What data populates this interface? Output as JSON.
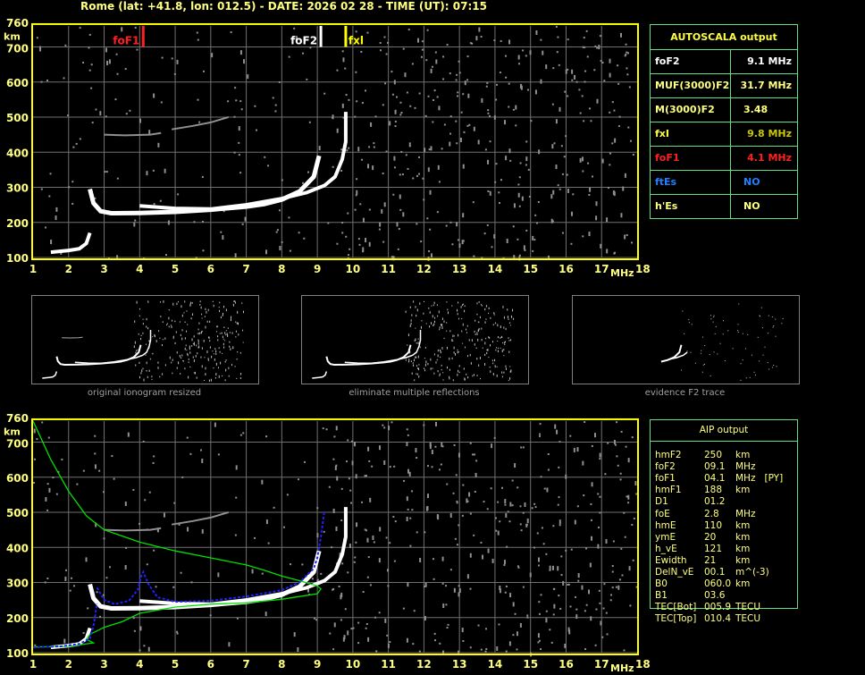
{
  "header": {
    "title": "Rome (lat: +41.8, lon: 012.5) - DATE: 2026 02 28 - TIME (UT): 07:15"
  },
  "axes": {
    "x_ticks": [
      "1",
      "2",
      "3",
      "4",
      "5",
      "6",
      "7",
      "8",
      "9",
      "10",
      "11",
      "12",
      "13",
      "14",
      "15",
      "16",
      "17",
      "18"
    ],
    "y_ticks": [
      "760",
      "700",
      "600",
      "500",
      "400",
      "300",
      "200",
      "100"
    ],
    "x_unit": "MHz",
    "y_unit": "km",
    "xlim": [
      1,
      18
    ],
    "ylim": [
      100,
      760
    ]
  },
  "colors": {
    "axis": "#ffff00",
    "grid": "#707070",
    "foF1": "#ff2020",
    "foF2": "#ffffff",
    "fxI": "#ffff00",
    "green_profile": "#00e000",
    "blue_trace": "#2020ff",
    "trace": "#ffffff",
    "noise": "#909090"
  },
  "markers": [
    {
      "label": "foF1",
      "freq": 4.1,
      "color": "#ff2020"
    },
    {
      "label": "foF2",
      "freq": 9.1,
      "color": "#ffffff"
    },
    {
      "label": "fxl",
      "freq": 9.8,
      "color": "#ffff00"
    }
  ],
  "traces": {
    "o_mode": [
      [
        2.6,
        295
      ],
      [
        2.7,
        255
      ],
      [
        2.9,
        232
      ],
      [
        3.2,
        226
      ],
      [
        4,
        227
      ],
      [
        5,
        230
      ],
      [
        6,
        236
      ],
      [
        7,
        245
      ],
      [
        7.5,
        252
      ],
      [
        8,
        265
      ],
      [
        8.5,
        288
      ],
      [
        8.9,
        330
      ],
      [
        9.05,
        390
      ]
    ],
    "x_mode": [
      [
        4.0,
        247
      ],
      [
        5,
        240
      ],
      [
        6,
        238
      ],
      [
        7,
        250
      ],
      [
        8,
        268
      ],
      [
        8.7,
        285
      ],
      [
        9.2,
        305
      ],
      [
        9.5,
        330
      ],
      [
        9.7,
        380
      ],
      [
        9.8,
        430
      ],
      [
        9.8,
        515
      ]
    ],
    "e_layer": [
      [
        1.5,
        115
      ],
      [
        2,
        120
      ],
      [
        2.3,
        125
      ],
      [
        2.5,
        140
      ],
      [
        2.6,
        170
      ]
    ],
    "multiple": [
      [
        3,
        450
      ],
      [
        3.6,
        448
      ],
      [
        4.3,
        450
      ],
      [
        4.6,
        455
      ]
    ],
    "multiple2": [
      [
        4.9,
        465
      ],
      [
        5.5,
        475
      ],
      [
        6,
        485
      ],
      [
        6.5,
        500
      ]
    ]
  },
  "aip_profile": {
    "green": [
      [
        1,
        760
      ],
      [
        1.5,
        650
      ],
      [
        2,
        560
      ],
      [
        2.5,
        490
      ],
      [
        3,
        450
      ],
      [
        4,
        415
      ],
      [
        5,
        390
      ],
      [
        6,
        370
      ],
      [
        7,
        350
      ],
      [
        7.5,
        335
      ],
      [
        8,
        318
      ],
      [
        8.5,
        305
      ],
      [
        9,
        290
      ],
      [
        9.1,
        282
      ],
      [
        9.0,
        268
      ],
      [
        8.5,
        260
      ],
      [
        8,
        252
      ],
      [
        7,
        242
      ],
      [
        6,
        238
      ],
      [
        5,
        230
      ],
      [
        4,
        212
      ],
      [
        3.5,
        188
      ],
      [
        3,
        172
      ],
      [
        2.6,
        152
      ],
      [
        2.5,
        138
      ],
      [
        2.7,
        128
      ],
      [
        2.3,
        122
      ],
      [
        2,
        118
      ],
      [
        1,
        116
      ]
    ],
    "blue": [
      [
        1,
        115
      ],
      [
        1.8,
        118
      ],
      [
        2.3,
        125
      ],
      [
        2.6,
        140
      ],
      [
        2.7,
        175
      ],
      [
        2.8,
        240
      ]
    ],
    "blue2": [
      [
        2.8,
        285
      ],
      [
        3,
        250
      ],
      [
        3.3,
        238
      ],
      [
        3.7,
        248
      ],
      [
        3.95,
        280
      ],
      [
        4.05,
        320
      ],
      [
        4.1,
        330
      ],
      [
        4.25,
        295
      ],
      [
        4.5,
        258
      ],
      [
        5,
        245
      ],
      [
        6,
        248
      ],
      [
        7,
        260
      ],
      [
        8,
        278
      ],
      [
        8.5,
        300
      ],
      [
        8.9,
        340
      ],
      [
        9,
        370
      ],
      [
        9.1,
        430
      ],
      [
        9.2,
        505
      ]
    ]
  },
  "thumbnails": [
    {
      "caption": "original ionogram resized"
    },
    {
      "caption": "eliminate multiple reflections"
    },
    {
      "caption": "evidence F2 trace"
    }
  ],
  "autoscala": {
    "title": "AUTOSCALA output",
    "rows": [
      {
        "key": "foF2",
        "value": "9.1 MHz",
        "color": "#ffffff",
        "value_color": "#ffffff"
      },
      {
        "key": "MUF(3000)F2",
        "value": "31.7 MHz",
        "color": "#ffff80",
        "value_color": "#ffff80"
      },
      {
        "key": "M(3000)F2",
        "value": "3.48",
        "color": "#ffff80",
        "value_color": "#ffff80"
      },
      {
        "key": "fxI",
        "value": "9.8 MHz",
        "color": "#ffff40",
        "value_color": "#c8c800"
      },
      {
        "key": "foF1",
        "value": "4.1 MHz",
        "color": "#ff2020",
        "value_color": "#ff2020"
      },
      {
        "key": "ftEs",
        "value": "NO",
        "color": "#2080ff",
        "value_color": "#2080ff"
      },
      {
        "key": "h'Es",
        "value": "NO",
        "color": "#ffff80",
        "value_color": "#ffff80"
      }
    ]
  },
  "aip": {
    "title": "AIP output",
    "rows": [
      [
        "hmF2",
        "250",
        "km"
      ],
      [
        "foF2",
        "09.1",
        "MHz"
      ],
      [
        "foF1",
        "04.1",
        "MHz   [PY]"
      ],
      [
        "hmF1",
        "188",
        "km"
      ],
      [
        "D1",
        "01.2",
        ""
      ],
      [
        "foE",
        "2.8",
        "MHz"
      ],
      [
        "hmE",
        "110",
        "km"
      ],
      [
        "ymE",
        "20",
        "km"
      ],
      [
        "h_vE",
        "121",
        "km"
      ],
      [
        "Ewidth",
        "21",
        "km"
      ],
      [
        "DelN_vE",
        "00.1",
        "m^(-3)"
      ],
      [
        "B0",
        "060.0",
        "km"
      ],
      [
        "B1",
        "03.6",
        ""
      ],
      [
        "TEC[Bot]",
        "005.9",
        "TECU"
      ],
      [
        "TEC[Top]",
        "010.4",
        "TECU"
      ]
    ]
  }
}
